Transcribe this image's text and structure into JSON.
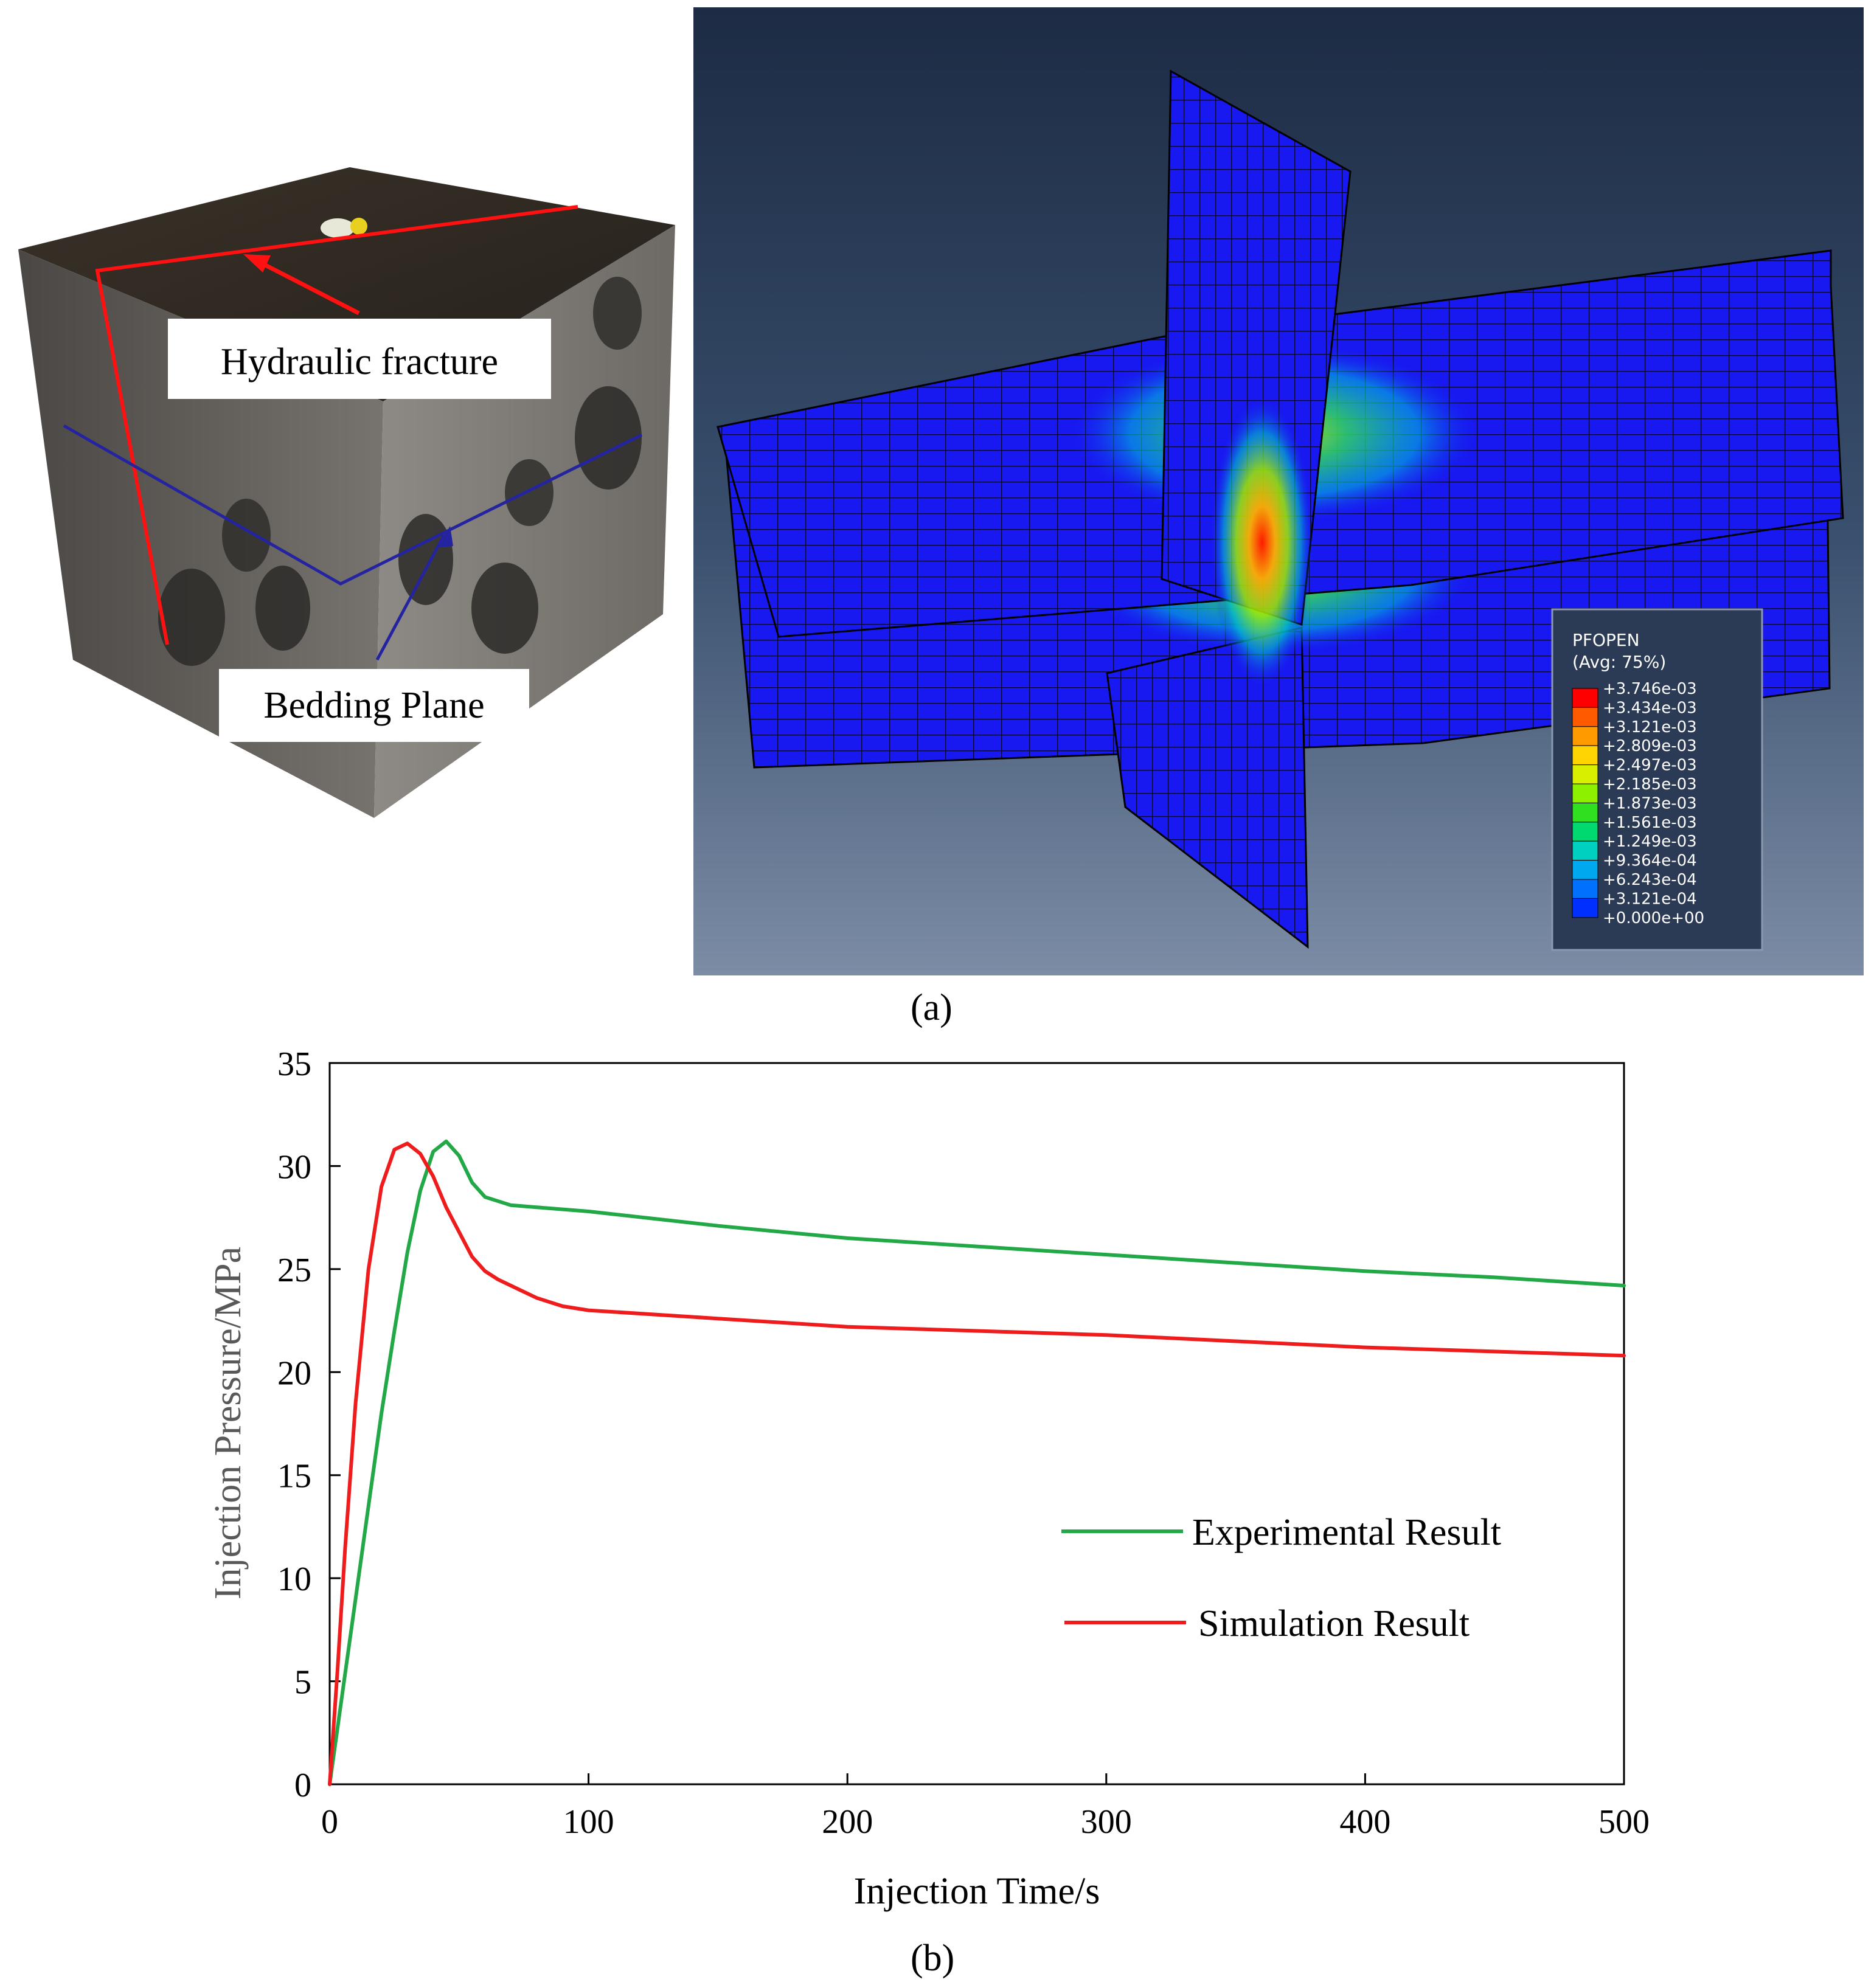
{
  "figure_a": {
    "label": "(a)",
    "photo": {
      "hydraulic_fracture_label": "Hydraulic fracture",
      "bedding_plane_label": "Bedding Plane"
    },
    "legend": {
      "title_line1": "PFOPEN",
      "title_line2": "(Avg: 75%)",
      "entries": [
        "+3.746e-03",
        "+3.434e-03",
        "+3.121e-03",
        "+2.809e-03",
        "+2.497e-03",
        "+2.185e-03",
        "+1.873e-03",
        "+1.561e-03",
        "+1.249e-03",
        "+9.364e-04",
        "+6.243e-04",
        "+3.121e-04",
        "+0.000e+00"
      ],
      "colors": [
        "#ff0000",
        "#ff5a00",
        "#ff9a00",
        "#ffd400",
        "#d8f000",
        "#8cf000",
        "#30e020",
        "#00d870",
        "#00d0c0",
        "#00a8f0",
        "#0070ff",
        "#0030ff"
      ]
    }
  },
  "figure_b": {
    "label": "(b)"
  },
  "chart_data": {
    "type": "line",
    "xlabel": "Injection Time/s",
    "ylabel": "Injection Pressure/MPa",
    "xlim": [
      0,
      500
    ],
    "ylim": [
      0,
      35
    ],
    "xticks": [
      0,
      100,
      200,
      300,
      400,
      500
    ],
    "yticks": [
      0,
      5,
      10,
      15,
      20,
      25,
      30,
      35
    ],
    "grid": false,
    "legend_position": "center-right",
    "series": [
      {
        "name": "Experimental Result",
        "color": "#22a846",
        "x": [
          0,
          5,
          10,
          15,
          20,
          25,
          30,
          35,
          40,
          45,
          50,
          55,
          60,
          70,
          80,
          100,
          150,
          200,
          250,
          300,
          350,
          400,
          450,
          500
        ],
        "y": [
          0,
          4.5,
          9.0,
          13.5,
          18.0,
          22.0,
          25.8,
          28.8,
          30.7,
          31.2,
          30.5,
          29.2,
          28.5,
          28.1,
          28.0,
          27.8,
          27.1,
          26.5,
          26.1,
          25.7,
          25.3,
          24.9,
          24.6,
          24.2
        ]
      },
      {
        "name": "Simulation Result",
        "color": "#ee1c1c",
        "x": [
          0,
          3,
          6,
          10,
          15,
          20,
          25,
          30,
          35,
          40,
          45,
          50,
          55,
          60,
          65,
          70,
          80,
          90,
          100,
          150,
          200,
          250,
          300,
          350,
          400,
          450,
          500
        ],
        "y": [
          0,
          5.5,
          11.5,
          18.5,
          25.0,
          29.0,
          30.8,
          31.1,
          30.6,
          29.5,
          28.0,
          26.8,
          25.6,
          24.9,
          24.5,
          24.2,
          23.6,
          23.2,
          23.0,
          22.6,
          22.2,
          22.0,
          21.8,
          21.5,
          21.2,
          21.0,
          20.8
        ]
      }
    ]
  }
}
